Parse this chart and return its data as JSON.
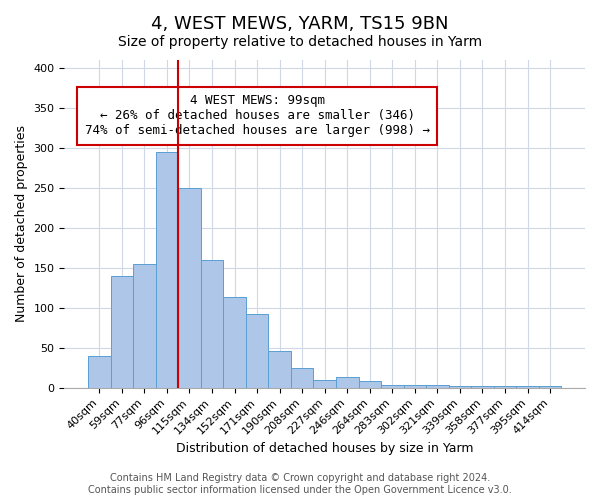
{
  "title": "4, WEST MEWS, YARM, TS15 9BN",
  "subtitle": "Size of property relative to detached houses in Yarm",
  "xlabel": "Distribution of detached houses by size in Yarm",
  "ylabel": "Number of detached properties",
  "bar_labels": [
    "40sqm",
    "59sqm",
    "77sqm",
    "96sqm",
    "115sqm",
    "134sqm",
    "152sqm",
    "171sqm",
    "190sqm",
    "208sqm",
    "227sqm",
    "246sqm",
    "264sqm",
    "283sqm",
    "302sqm",
    "321sqm",
    "339sqm",
    "358sqm",
    "377sqm",
    "395sqm",
    "414sqm"
  ],
  "bar_values": [
    40,
    140,
    155,
    295,
    250,
    160,
    113,
    92,
    46,
    25,
    10,
    13,
    8,
    3,
    3,
    3,
    2,
    2,
    2,
    2,
    2
  ],
  "bar_color": "#aec6e8",
  "bar_edgecolor": "#5a9fd4",
  "vline_x_index": 3,
  "vline_color": "#cc0000",
  "annotation_box_text": "4 WEST MEWS: 99sqm\n← 26% of detached houses are smaller (346)\n74% of semi-detached houses are larger (998) →",
  "box_edgecolor": "#cc0000",
  "ylim": [
    0,
    410
  ],
  "footer": "Contains HM Land Registry data © Crown copyright and database right 2024.\nContains public sector information licensed under the Open Government Licence v3.0.",
  "background_color": "#ffffff",
  "grid_color": "#d0d8e8",
  "title_fontsize": 13,
  "subtitle_fontsize": 10,
  "axis_label_fontsize": 9,
  "tick_fontsize": 8,
  "annotation_fontsize": 9,
  "footer_fontsize": 7
}
